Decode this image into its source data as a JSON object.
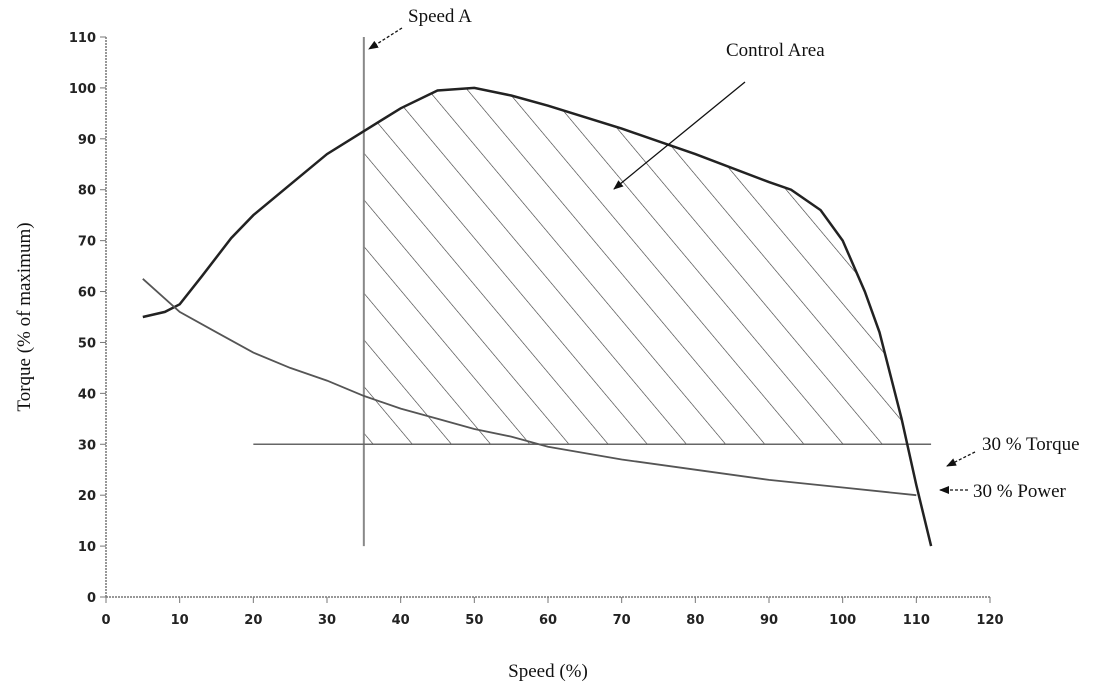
{
  "chart_data": {
    "type": "line",
    "title": "",
    "xlabel": "Speed (%)",
    "ylabel": "Torque (% of maximum)",
    "xlim": [
      0,
      120
    ],
    "ylim": [
      0,
      110
    ],
    "x_ticks": [
      0,
      10,
      20,
      30,
      40,
      50,
      60,
      70,
      80,
      90,
      100,
      110,
      120
    ],
    "y_ticks": [
      0,
      10,
      20,
      30,
      40,
      50,
      60,
      70,
      80,
      90,
      100,
      110
    ],
    "grid": false,
    "series": [
      {
        "key": "max_torque",
        "color": "#222222",
        "points": [
          [
            5,
            55
          ],
          [
            8,
            56
          ],
          [
            10,
            57.5
          ],
          [
            13,
            63
          ],
          [
            17,
            70.5
          ],
          [
            20,
            75
          ],
          [
            25,
            81
          ],
          [
            30,
            87
          ],
          [
            35,
            91.5
          ],
          [
            40,
            96
          ],
          [
            45,
            99.5
          ],
          [
            50,
            100
          ],
          [
            55,
            98.5
          ],
          [
            60,
            96.5
          ],
          [
            70,
            92
          ],
          [
            80,
            87
          ],
          [
            90,
            81.5
          ],
          [
            93,
            80
          ],
          [
            97,
            76
          ],
          [
            100,
            70
          ],
          [
            103,
            60
          ],
          [
            105,
            52
          ],
          [
            108,
            35
          ],
          [
            110,
            22
          ],
          [
            112,
            10
          ]
        ]
      },
      {
        "key": "power_30",
        "color": "#555555",
        "points": [
          [
            5,
            62.5
          ],
          [
            10,
            56
          ],
          [
            15,
            52
          ],
          [
            20,
            48
          ],
          [
            25,
            45
          ],
          [
            30,
            42.5
          ],
          [
            35,
            39.5
          ],
          [
            40,
            37
          ],
          [
            45,
            35
          ],
          [
            50,
            33
          ],
          [
            55,
            31.5
          ],
          [
            60,
            29.5
          ],
          [
            70,
            27
          ],
          [
            80,
            25
          ],
          [
            90,
            23
          ],
          [
            100,
            21.5
          ],
          [
            110,
            20
          ]
        ]
      }
    ],
    "reference_lines": [
      {
        "key": "speed_a",
        "orientation": "vertical",
        "x": 35,
        "y_range": [
          10,
          110
        ]
      },
      {
        "key": "torque_30",
        "orientation": "horizontal",
        "y": 30,
        "x_range": [
          20,
          112
        ]
      }
    ],
    "shaded_region": {
      "key": "control_area",
      "bounds": "right of Speed A (x=35), above 30 % Torque (y=30), below max torque curve",
      "pattern": "diagonal-hatch"
    },
    "annotations": [
      {
        "key": "speed_a",
        "text": "Speed A"
      },
      {
        "key": "control_area",
        "text": "Control Area"
      },
      {
        "key": "torque_30",
        "text": "30 % Torque"
      },
      {
        "key": "power_30",
        "text": "30 % Power"
      }
    ]
  }
}
